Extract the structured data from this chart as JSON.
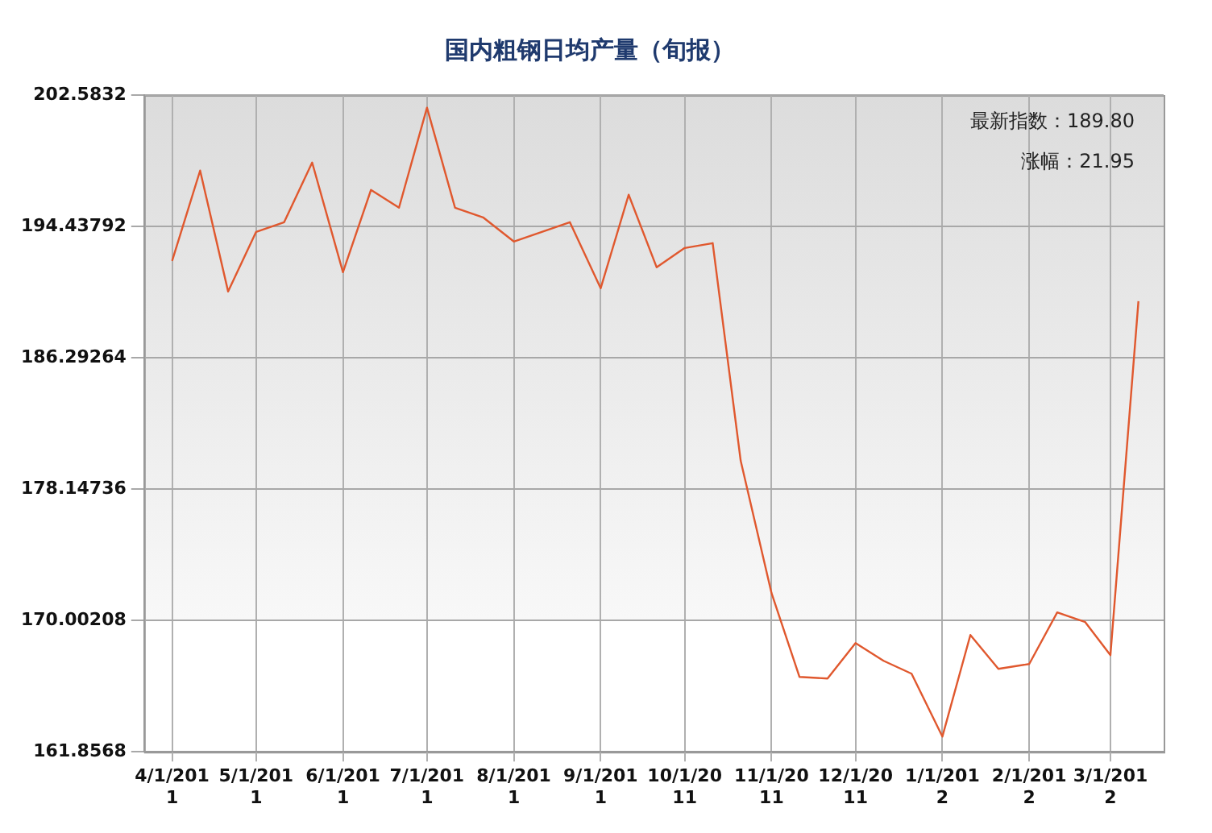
{
  "chart_data": {
    "type": "line",
    "title": "国内粗钢日均产量（旬报）",
    "x": [
      "2011-04-01",
      "2011-04-11",
      "2011-04-21",
      "2011-05-01",
      "2011-05-11",
      "2011-05-21",
      "2011-06-01",
      "2011-06-11",
      "2011-06-21",
      "2011-07-01",
      "2011-07-11",
      "2011-07-21",
      "2011-08-01",
      "2011-08-11",
      "2011-08-21",
      "2011-09-01",
      "2011-09-11",
      "2011-09-21",
      "2011-10-01",
      "2011-10-11",
      "2011-10-21",
      "2011-11-01",
      "2011-11-11",
      "2011-11-21",
      "2011-12-01",
      "2011-12-11",
      "2011-12-21",
      "2012-01-01",
      "2012-01-11",
      "2012-01-21",
      "2012-02-01",
      "2012-02-11",
      "2012-02-21",
      "2012-03-01",
      "2012-03-11"
    ],
    "series": [
      {
        "color": "#e0582e",
        "values": [
          192.3,
          197.9,
          190.4,
          194.1,
          194.7,
          198.4,
          191.6,
          196.7,
          195.6,
          201.8,
          195.6,
          195.0,
          193.5,
          194.1,
          194.7,
          190.6,
          196.4,
          191.9,
          193.1,
          193.4,
          179.9,
          171.7,
          166.5,
          166.4,
          168.6,
          167.5,
          166.7,
          162.8,
          169.1,
          167.0,
          167.3,
          170.5,
          169.9,
          167.85,
          189.8
        ]
      }
    ],
    "xlim": [
      "2011-03-22",
      "2012-03-20"
    ],
    "xticks": [
      {
        "value": "2011-04-01",
        "label": "4/1/2011"
      },
      {
        "value": "2011-05-01",
        "label": "5/1/2011"
      },
      {
        "value": "2011-06-01",
        "label": "6/1/2011"
      },
      {
        "value": "2011-07-01",
        "label": "7/1/2011"
      },
      {
        "value": "2011-08-01",
        "label": "8/1/2011"
      },
      {
        "value": "2011-09-01",
        "label": "9/1/2011"
      },
      {
        "value": "2011-10-01",
        "label": "10/1/2011"
      },
      {
        "value": "2011-11-01",
        "label": "11/1/2011"
      },
      {
        "value": "2011-12-01",
        "label": "12/1/2011"
      },
      {
        "value": "2012-01-01",
        "label": "1/1/2012"
      },
      {
        "value": "2012-02-01",
        "label": "2/1/2012"
      },
      {
        "value": "2012-03-01",
        "label": "3/1/2012"
      }
    ],
    "ylim": [
      161.8568,
      202.5832
    ],
    "yticks": [
      161.8568,
      170.00208,
      178.14736,
      186.29264,
      194.43792,
      202.5832
    ],
    "annotations": [
      "最新指数：189.80",
      "涨幅：21.95"
    ],
    "grid": true,
    "legend": false,
    "marker": "none",
    "line_style": "solid"
  }
}
